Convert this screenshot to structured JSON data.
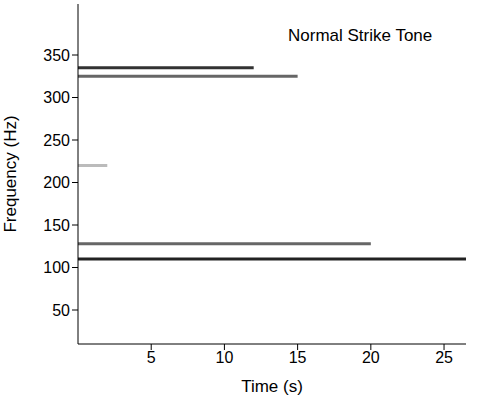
{
  "chart_data": {
    "type": "line",
    "annotation": "Normal Strike Tone",
    "x_label": "Time (s)",
    "y_label": "Frequency (Hz)",
    "xlim": [
      0,
      26.5
    ],
    "xticks": [
      5,
      10,
      15,
      20,
      25
    ],
    "ylim": [
      10,
      410
    ],
    "yticks": [
      50,
      100,
      150,
      200,
      250,
      300,
      350
    ],
    "grid": false,
    "series": [
      {
        "x": [
          0,
          12
        ],
        "values": [
          335,
          335
        ],
        "color": "#333333"
      },
      {
        "x": [
          0,
          15
        ],
        "values": [
          325,
          325
        ],
        "color": "#666666"
      },
      {
        "x": [
          0,
          2
        ],
        "values": [
          220,
          220
        ],
        "color": "#bbbbbb"
      },
      {
        "x": [
          0,
          20
        ],
        "values": [
          128,
          128
        ],
        "color": "#666666"
      },
      {
        "x": [
          0,
          26.5
        ],
        "values": [
          110,
          110
        ],
        "color": "#222222"
      }
    ]
  }
}
